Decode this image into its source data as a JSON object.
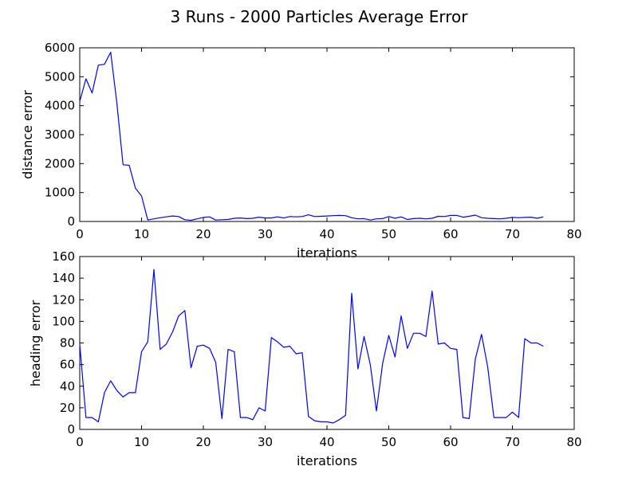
{
  "figure": {
    "title": "3 Runs - 2000 Particles Average Error"
  },
  "chart_data": [
    {
      "type": "line",
      "xlabel": "iterations",
      "ylabel": "distance error",
      "xlim": [
        0,
        80
      ],
      "ylim": [
        0,
        6000
      ],
      "xticks": [
        0,
        10,
        20,
        30,
        40,
        50,
        60,
        70,
        80
      ],
      "yticks": [
        0,
        1000,
        2000,
        3000,
        4000,
        5000,
        6000
      ],
      "grid": false,
      "color": "#0000ff",
      "series": [
        {
          "x": [
            0,
            1,
            2,
            3,
            4,
            5,
            6,
            7,
            8,
            9,
            10,
            11,
            12,
            13,
            14,
            15,
            16,
            17,
            18,
            19,
            20,
            21,
            22,
            23,
            24,
            25,
            26,
            27,
            28,
            29,
            30,
            31,
            32,
            33,
            34,
            35,
            36,
            37,
            38,
            39,
            40,
            41,
            42,
            43,
            44,
            45,
            46,
            47,
            48,
            49,
            50,
            51,
            52,
            53,
            54,
            55,
            56,
            57,
            58,
            59,
            60,
            61,
            62,
            63,
            64,
            65,
            66,
            67,
            68,
            69,
            70,
            71,
            72,
            73,
            74,
            75
          ],
          "values": [
            4150,
            4930,
            4440,
            5400,
            5430,
            5850,
            4100,
            1960,
            1940,
            1150,
            880,
            50,
            90,
            130,
            160,
            190,
            170,
            60,
            40,
            90,
            140,
            160,
            50,
            60,
            70,
            110,
            120,
            100,
            110,
            150,
            120,
            120,
            160,
            120,
            170,
            160,
            170,
            230,
            170,
            180,
            190,
            200,
            210,
            200,
            130,
            90,
            100,
            50,
            90,
            100,
            170,
            110,
            160,
            70,
            100,
            110,
            90,
            110,
            180,
            170,
            210,
            210,
            150,
            180,
            220,
            130,
            110,
            100,
            90,
            110,
            140,
            130,
            140,
            150,
            110,
            160
          ]
        }
      ]
    },
    {
      "type": "line",
      "xlabel": "iterations",
      "ylabel": "heading error",
      "xlim": [
        0,
        80
      ],
      "ylim": [
        0,
        160
      ],
      "xticks": [
        0,
        10,
        20,
        30,
        40,
        50,
        60,
        70,
        80
      ],
      "yticks": [
        0,
        20,
        40,
        60,
        80,
        100,
        120,
        140,
        160
      ],
      "grid": false,
      "color": "#0000ff",
      "series": [
        {
          "x": [
            0,
            1,
            2,
            3,
            4,
            5,
            6,
            7,
            8,
            9,
            10,
            11,
            12,
            13,
            14,
            15,
            16,
            17,
            18,
            19,
            20,
            21,
            22,
            23,
            24,
            25,
            26,
            27,
            28,
            29,
            30,
            31,
            32,
            33,
            34,
            35,
            36,
            37,
            38,
            39,
            40,
            41,
            42,
            43,
            44,
            45,
            46,
            47,
            48,
            49,
            50,
            51,
            52,
            53,
            54,
            55,
            56,
            57,
            58,
            59,
            60,
            61,
            62,
            63,
            64,
            65,
            66,
            67,
            68,
            69,
            70,
            71,
            72,
            73,
            74,
            75
          ],
          "values": [
            79,
            11,
            11,
            7,
            34,
            45,
            36,
            30,
            34,
            34,
            72,
            81,
            148,
            74,
            79,
            90,
            105,
            110,
            57,
            77,
            78,
            75,
            62,
            10,
            74,
            72,
            11,
            11,
            9,
            20,
            17,
            85,
            81,
            76,
            77,
            70,
            71,
            12,
            8,
            7,
            7,
            6,
            9,
            13,
            126,
            56,
            86,
            60,
            17,
            61,
            87,
            67,
            105,
            75,
            89,
            89,
            86,
            128,
            79,
            80,
            75,
            74,
            11,
            10,
            65,
            88,
            58,
            11,
            11,
            11,
            16,
            11,
            84,
            80,
            80,
            77
          ]
        }
      ]
    }
  ]
}
